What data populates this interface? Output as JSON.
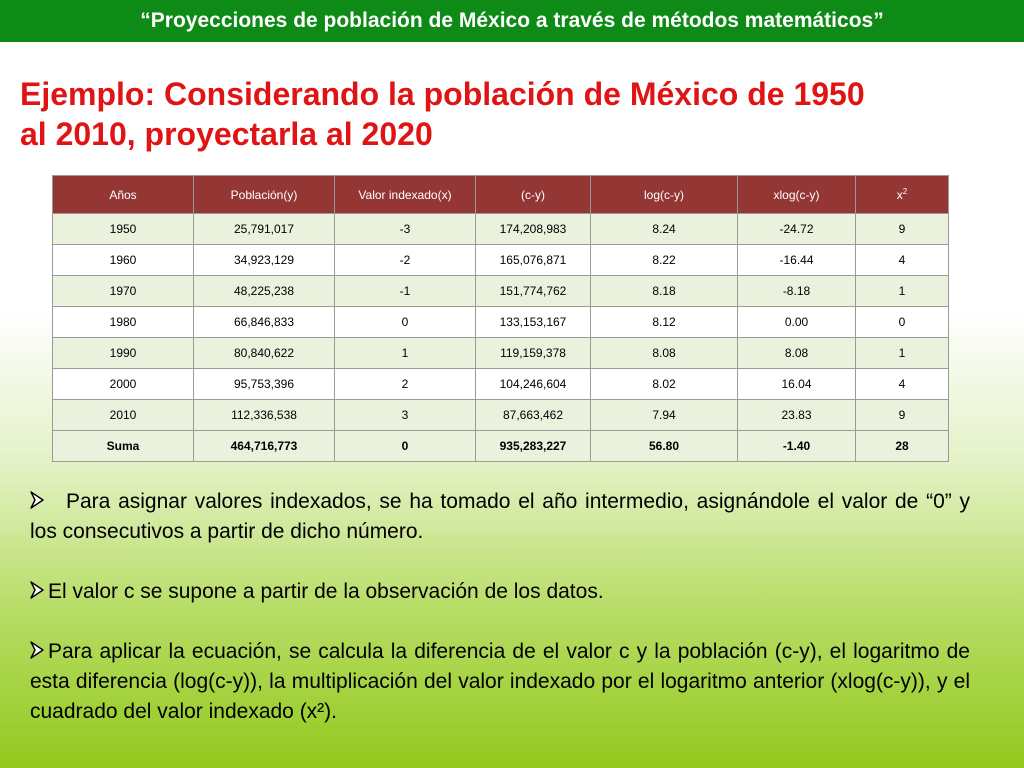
{
  "title_bar": "“Proyecciones de población de México a través de métodos matemáticos”",
  "heading": {
    "line1": "Ejemplo: Considerando la población de México de 1950",
    "line2": "al 2010, proyectarla al 2020"
  },
  "table": {
    "headers": [
      "Años",
      "Población(y)",
      "Valor indexado(x)",
      "(c-y)",
      "log(c-y)",
      "xlog(c-y)"
    ],
    "header_x2_base": "x",
    "header_x2_exp": "2",
    "rows": [
      [
        "1950",
        "25,791,017",
        "-3",
        "174,208,983",
        "8.24",
        "-24.72",
        "9"
      ],
      [
        "1960",
        "34,923,129",
        "-2",
        "165,076,871",
        "8.22",
        "-16.44",
        "4"
      ],
      [
        "1970",
        "48,225,238",
        "-1",
        "151,774,762",
        "8.18",
        "-8.18",
        "1"
      ],
      [
        "1980",
        "66,846,833",
        "0",
        "133,153,167",
        "8.12",
        "0.00",
        "0"
      ],
      [
        "1990",
        "80,840,622",
        "1",
        "119,159,378",
        "8.08",
        "8.08",
        "1"
      ],
      [
        "2000",
        "95,753,396",
        "2",
        "104,246,604",
        "8.02",
        "16.04",
        "4"
      ],
      [
        "2010",
        "112,336,538",
        "3",
        "87,663,462",
        "7.94",
        "23.83",
        "9"
      ]
    ],
    "totals": [
      "Suma",
      "464,716,773",
      "0",
      "935,283,227",
      "56.80",
      "-1.40",
      "28"
    ]
  },
  "bullets": [
    "Para asignar valores indexados, se ha tomado el año intermedio, asignándole el valor de “0” y los consecutivos a partir de dicho número.",
    "El valor c se supone a partir de la observación de los datos.",
    "Para aplicar la ecuación, se calcula la diferencia de el valor c y la población (c-y), el logaritmo de esta diferencia (log(c-y)), la multiplicación del valor indexado por el logaritmo anterior (xlog(c-y)), y el cuadrado del valor indexado (x²)."
  ],
  "bullet_icon": "arrow-bullet-icon",
  "colors": {
    "title_bar_bg": "#0e8a16",
    "heading_text": "#e01414",
    "table_header_bg": "#943634",
    "table_row_light": "#eaf1dd"
  }
}
